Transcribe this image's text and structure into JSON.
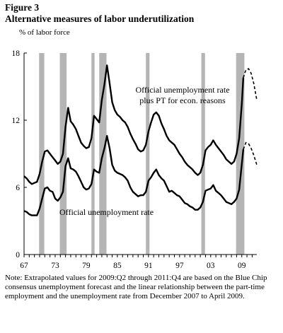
{
  "figure": {
    "label": "Figure 3",
    "note": "Note: Extrapolated values for 2009:Q2 through 2011:Q4 are based on the Blue Chip consensus unemployment forecast and the linear relationship between the part-time employment and the unemployment rate from December 2007 to April 2009."
  },
  "chart_data": {
    "type": "line",
    "title": "Alternative measures of labor underutilization",
    "ylabel": "% of labor force",
    "xlabel": "",
    "xlim": [
      1967.0,
      2011.9
    ],
    "ylim": [
      0,
      18
    ],
    "y_ticks": [
      0,
      6,
      12,
      18
    ],
    "x_ticks": [
      {
        "value": 1967,
        "label": "67"
      },
      {
        "value": 1973,
        "label": "73"
      },
      {
        "value": 1979,
        "label": "79"
      },
      {
        "value": 1985,
        "label": "85"
      },
      {
        "value": 1991,
        "label": "91"
      },
      {
        "value": 1997,
        "label": "97"
      },
      {
        "value": 2003,
        "label": "03"
      },
      {
        "value": 2009,
        "label": "09"
      }
    ],
    "grid": false,
    "recessions": [
      [
        1969.9,
        1970.9
      ],
      [
        1973.9,
        1975.2
      ],
      [
        1980.0,
        1980.6
      ],
      [
        1981.5,
        1982.9
      ],
      [
        1990.5,
        1991.2
      ],
      [
        2001.2,
        2001.9
      ],
      [
        2007.9,
        2009.5
      ]
    ],
    "series": [
      {
        "name": "Official unemployment rate plus PT for econ. reasons",
        "label_position": "upper-right",
        "values": [
          [
            1967.0,
            7.0
          ],
          [
            1967.5,
            6.8
          ],
          [
            1968.0,
            6.5
          ],
          [
            1968.5,
            6.3
          ],
          [
            1969.0,
            6.4
          ],
          [
            1969.5,
            6.5
          ],
          [
            1970.0,
            7.2
          ],
          [
            1970.5,
            8.3
          ],
          [
            1971.0,
            9.2
          ],
          [
            1971.5,
            9.3
          ],
          [
            1972.0,
            9.0
          ],
          [
            1972.5,
            8.7
          ],
          [
            1973.0,
            8.4
          ],
          [
            1973.5,
            8.1
          ],
          [
            1974.0,
            8.3
          ],
          [
            1974.5,
            9.0
          ],
          [
            1975.0,
            11.4
          ],
          [
            1975.5,
            13.1
          ],
          [
            1976.0,
            11.9
          ],
          [
            1976.5,
            11.6
          ],
          [
            1977.0,
            11.2
          ],
          [
            1977.5,
            10.6
          ],
          [
            1978.0,
            10.0
          ],
          [
            1978.5,
            9.7
          ],
          [
            1979.0,
            9.5
          ],
          [
            1979.5,
            9.6
          ],
          [
            1980.0,
            10.4
          ],
          [
            1980.5,
            12.4
          ],
          [
            1981.0,
            12.1
          ],
          [
            1981.5,
            11.8
          ],
          [
            1982.0,
            13.8
          ],
          [
            1982.5,
            15.2
          ],
          [
            1983.0,
            16.9
          ],
          [
            1983.5,
            15.3
          ],
          [
            1984.0,
            13.6
          ],
          [
            1984.5,
            12.9
          ],
          [
            1985.0,
            12.5
          ],
          [
            1985.5,
            12.3
          ],
          [
            1986.0,
            12.0
          ],
          [
            1986.5,
            11.8
          ],
          [
            1987.0,
            11.4
          ],
          [
            1987.5,
            10.8
          ],
          [
            1988.0,
            10.3
          ],
          [
            1988.5,
            9.9
          ],
          [
            1989.0,
            9.4
          ],
          [
            1989.5,
            9.2
          ],
          [
            1990.0,
            9.3
          ],
          [
            1990.5,
            9.8
          ],
          [
            1991.0,
            11.0
          ],
          [
            1991.5,
            11.8
          ],
          [
            1992.0,
            12.5
          ],
          [
            1992.5,
            12.7
          ],
          [
            1993.0,
            12.4
          ],
          [
            1993.5,
            11.7
          ],
          [
            1994.0,
            11.2
          ],
          [
            1994.5,
            10.6
          ],
          [
            1995.0,
            10.2
          ],
          [
            1995.5,
            10.0
          ],
          [
            1996.0,
            9.8
          ],
          [
            1996.5,
            9.4
          ],
          [
            1997.0,
            9.0
          ],
          [
            1997.5,
            8.7
          ],
          [
            1998.0,
            8.3
          ],
          [
            1998.5,
            8.0
          ],
          [
            1999.0,
            7.8
          ],
          [
            1999.5,
            7.6
          ],
          [
            2000.0,
            7.3
          ],
          [
            2000.5,
            7.1
          ],
          [
            2001.0,
            7.3
          ],
          [
            2001.5,
            8.0
          ],
          [
            2002.0,
            9.3
          ],
          [
            2002.5,
            9.6
          ],
          [
            2003.0,
            9.8
          ],
          [
            2003.5,
            10.2
          ],
          [
            2004.0,
            9.8
          ],
          [
            2004.5,
            9.5
          ],
          [
            2005.0,
            9.2
          ],
          [
            2005.5,
            8.9
          ],
          [
            2006.0,
            8.5
          ],
          [
            2006.5,
            8.3
          ],
          [
            2007.0,
            8.1
          ],
          [
            2007.5,
            8.3
          ],
          [
            2008.0,
            9.0
          ],
          [
            2008.5,
            10.4
          ],
          [
            2009.0,
            13.5
          ],
          [
            2009.3,
            15.8
          ]
        ],
        "projection": [
          [
            2009.3,
            15.8
          ],
          [
            2009.8,
            16.5
          ],
          [
            2010.3,
            16.6
          ],
          [
            2010.8,
            16.2
          ],
          [
            2011.3,
            15.3
          ],
          [
            2011.9,
            13.8
          ]
        ]
      },
      {
        "name": "Official unemployment rate",
        "label_position": "lower-middle",
        "values": [
          [
            1967.0,
            3.9
          ],
          [
            1967.5,
            3.8
          ],
          [
            1968.0,
            3.6
          ],
          [
            1968.5,
            3.5
          ],
          [
            1969.0,
            3.5
          ],
          [
            1969.5,
            3.5
          ],
          [
            1970.0,
            4.1
          ],
          [
            1970.5,
            5.0
          ],
          [
            1971.0,
            5.9
          ],
          [
            1971.5,
            6.0
          ],
          [
            1972.0,
            5.7
          ],
          [
            1972.5,
            5.6
          ],
          [
            1973.0,
            5.0
          ],
          [
            1973.5,
            4.8
          ],
          [
            1974.0,
            5.1
          ],
          [
            1974.5,
            5.6
          ],
          [
            1975.0,
            7.9
          ],
          [
            1975.5,
            8.6
          ],
          [
            1976.0,
            7.7
          ],
          [
            1976.5,
            7.6
          ],
          [
            1977.0,
            7.4
          ],
          [
            1977.5,
            7.0
          ],
          [
            1978.0,
            6.5
          ],
          [
            1978.5,
            6.0
          ],
          [
            1979.0,
            5.8
          ],
          [
            1979.5,
            5.9
          ],
          [
            1980.0,
            6.3
          ],
          [
            1980.5,
            7.6
          ],
          [
            1981.0,
            7.4
          ],
          [
            1981.5,
            7.3
          ],
          [
            1982.0,
            8.6
          ],
          [
            1982.5,
            9.5
          ],
          [
            1983.0,
            10.6
          ],
          [
            1983.5,
            9.5
          ],
          [
            1984.0,
            8.0
          ],
          [
            1984.5,
            7.5
          ],
          [
            1985.0,
            7.3
          ],
          [
            1985.5,
            7.2
          ],
          [
            1986.0,
            7.1
          ],
          [
            1986.5,
            6.9
          ],
          [
            1987.0,
            6.6
          ],
          [
            1987.5,
            6.0
          ],
          [
            1988.0,
            5.6
          ],
          [
            1988.5,
            5.4
          ],
          [
            1989.0,
            5.2
          ],
          [
            1989.5,
            5.3
          ],
          [
            1990.0,
            5.3
          ],
          [
            1990.5,
            5.6
          ],
          [
            1991.0,
            6.6
          ],
          [
            1991.5,
            6.9
          ],
          [
            1992.0,
            7.3
          ],
          [
            1992.5,
            7.6
          ],
          [
            1993.0,
            7.1
          ],
          [
            1993.5,
            6.8
          ],
          [
            1994.0,
            6.6
          ],
          [
            1994.5,
            6.1
          ],
          [
            1995.0,
            5.6
          ],
          [
            1995.5,
            5.7
          ],
          [
            1996.0,
            5.5
          ],
          [
            1996.5,
            5.3
          ],
          [
            1997.0,
            5.2
          ],
          [
            1997.5,
            4.9
          ],
          [
            1998.0,
            4.6
          ],
          [
            1998.5,
            4.5
          ],
          [
            1999.0,
            4.3
          ],
          [
            1999.5,
            4.2
          ],
          [
            2000.0,
            4.0
          ],
          [
            2000.5,
            4.0
          ],
          [
            2001.0,
            4.2
          ],
          [
            2001.5,
            4.7
          ],
          [
            2002.0,
            5.7
          ],
          [
            2002.5,
            5.8
          ],
          [
            2003.0,
            5.9
          ],
          [
            2003.5,
            6.2
          ],
          [
            2004.0,
            5.7
          ],
          [
            2004.5,
            5.5
          ],
          [
            2005.0,
            5.3
          ],
          [
            2005.5,
            5.0
          ],
          [
            2006.0,
            4.7
          ],
          [
            2006.5,
            4.6
          ],
          [
            2007.0,
            4.5
          ],
          [
            2007.5,
            4.7
          ],
          [
            2008.0,
            5.0
          ],
          [
            2008.5,
            5.8
          ],
          [
            2009.0,
            8.1
          ],
          [
            2009.3,
            9.4
          ]
        ],
        "projection": [
          [
            2009.3,
            9.4
          ],
          [
            2009.8,
            10.0
          ],
          [
            2010.3,
            9.9
          ],
          [
            2010.8,
            9.5
          ],
          [
            2011.3,
            8.9
          ],
          [
            2011.9,
            8.0
          ]
        ]
      }
    ]
  }
}
